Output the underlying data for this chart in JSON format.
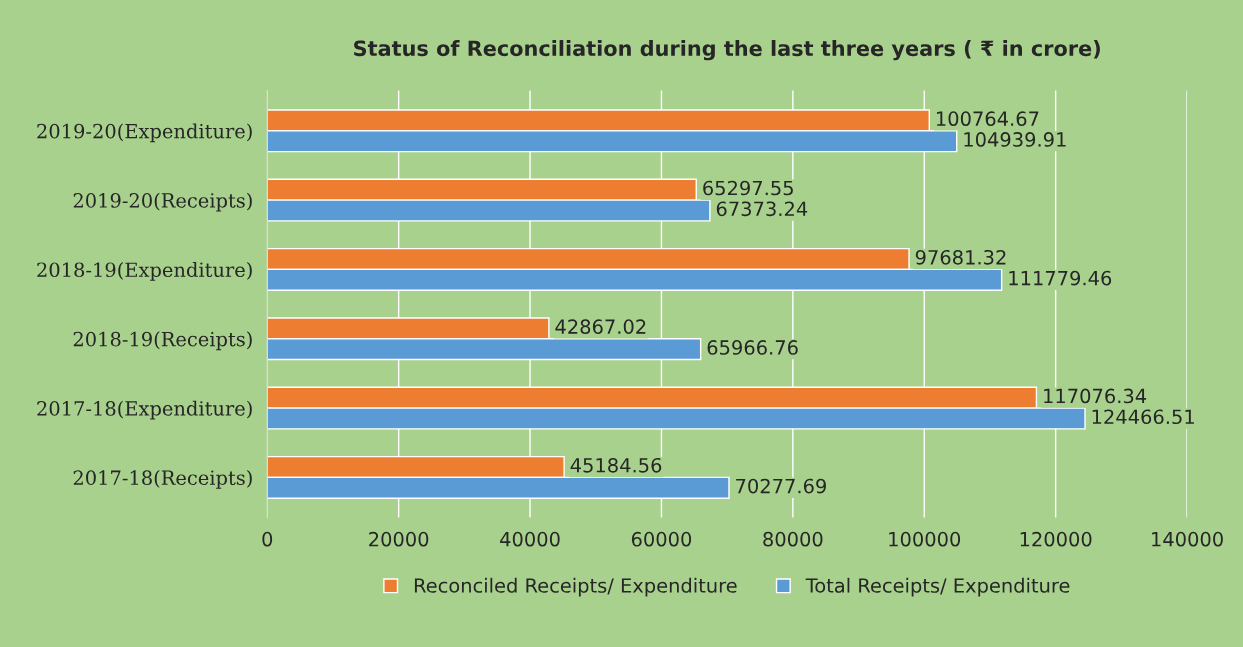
{
  "chart_data": {
    "type": "bar",
    "orientation": "horizontal",
    "title": "Status of Reconciliation during the last three years ( ₹ in crore)",
    "categories": [
      "2019-20(Expenditure)",
      "2019-20(Receipts)",
      "2018-19(Expenditure)",
      "2018-19(Receipts)",
      "2017-18(Expenditure)",
      "2017-18(Receipts)"
    ],
    "series": [
      {
        "name": "Reconciled Receipts/ Expenditure",
        "color": "#ed7d31",
        "values": [
          100764.67,
          65297.55,
          97681.32,
          42867.02,
          117076.34,
          45184.56
        ]
      },
      {
        "name": "Total Receipts/ Expenditure",
        "color": "#5b9bd5",
        "values": [
          104939.91,
          67373.24,
          111779.46,
          65966.76,
          124466.51,
          70277.69
        ]
      }
    ],
    "xlim": [
      0,
      140000
    ],
    "xticks": [
      0,
      20000,
      40000,
      60000,
      80000,
      100000,
      120000,
      140000
    ],
    "grid": "x",
    "legend": "bottom",
    "data_labels": true
  }
}
